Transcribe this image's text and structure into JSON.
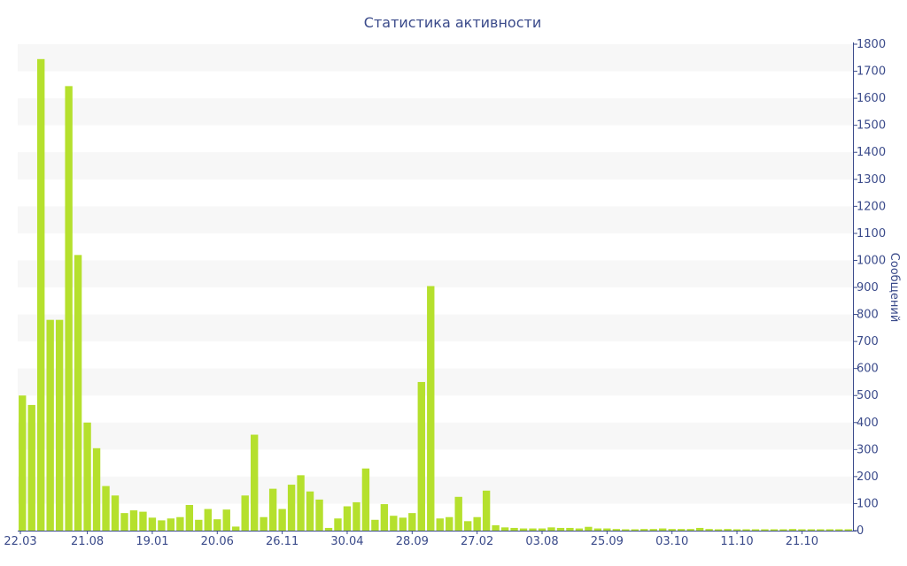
{
  "chart_data": {
    "type": "bar",
    "title": "Статистика активности",
    "ylabel": "Сообщений",
    "ylim": [
      0,
      1800
    ],
    "y_ticks": [
      0,
      100,
      200,
      300,
      400,
      500,
      600,
      700,
      800,
      900,
      1000,
      1100,
      1200,
      1300,
      1400,
      1500,
      1600,
      1700,
      1800
    ],
    "y_axis_side": "right",
    "grid": "alternating horizontal bands",
    "bar_color": "#b5e02d",
    "x_tick_labels": [
      {
        "index": 0,
        "label": "22.03"
      },
      {
        "index": 7,
        "label": "21.08"
      },
      {
        "index": 14,
        "label": "19.01"
      },
      {
        "index": 21,
        "label": "20.06"
      },
      {
        "index": 28,
        "label": "26.11"
      },
      {
        "index": 35,
        "label": "30.04"
      },
      {
        "index": 42,
        "label": "28.09"
      },
      {
        "index": 49,
        "label": "27.02"
      },
      {
        "index": 56,
        "label": "03.08"
      },
      {
        "index": 63,
        "label": "25.09"
      },
      {
        "index": 70,
        "label": "03.10"
      },
      {
        "index": 77,
        "label": "11.10"
      },
      {
        "index": 84,
        "label": "21.10"
      }
    ],
    "values": [
      500,
      465,
      1745,
      780,
      780,
      1645,
      1020,
      400,
      305,
      165,
      130,
      65,
      75,
      70,
      48,
      38,
      45,
      50,
      95,
      40,
      80,
      42,
      78,
      15,
      130,
      355,
      50,
      155,
      80,
      170,
      205,
      145,
      115,
      10,
      45,
      90,
      105,
      230,
      40,
      98,
      55,
      48,
      65,
      550,
      905,
      45,
      50,
      125,
      35,
      50,
      148,
      20,
      12,
      10,
      8,
      8,
      8,
      12,
      10,
      10,
      8,
      14,
      8,
      8,
      6,
      5,
      5,
      6,
      6,
      8,
      6,
      6,
      6,
      10,
      6,
      5,
      6,
      5,
      5,
      5,
      5,
      5,
      5,
      6,
      5,
      5,
      5,
      5,
      5,
      5
    ]
  }
}
